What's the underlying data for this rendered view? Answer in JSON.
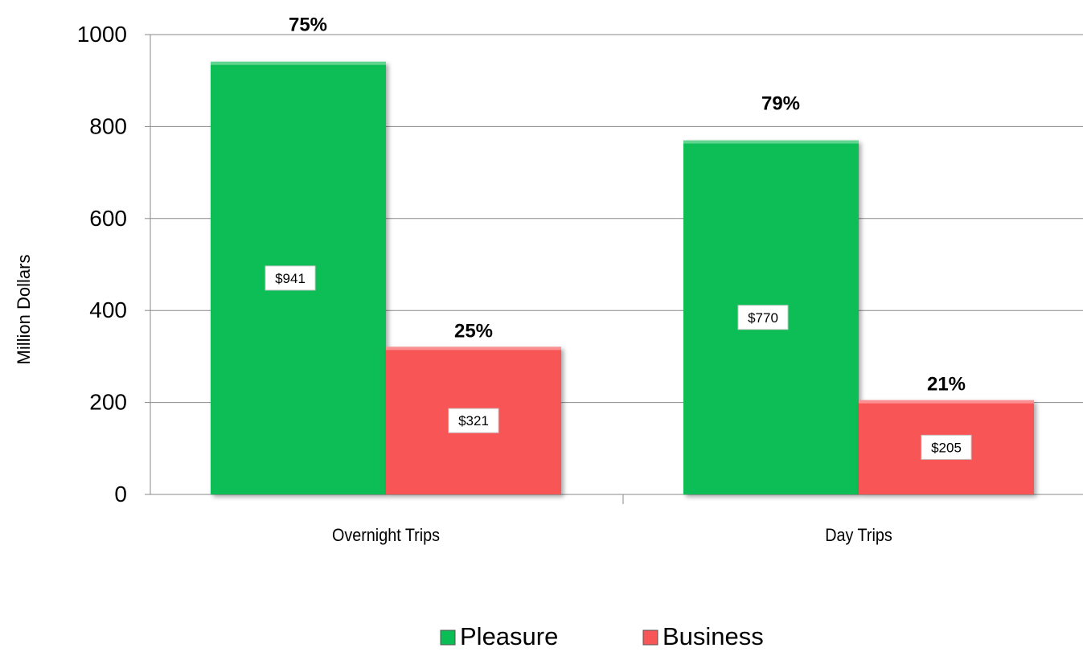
{
  "chart_data": {
    "type": "bar",
    "categories": [
      "Overnight Trips",
      "Day Trips"
    ],
    "series": [
      {
        "name": "Pleasure",
        "values": [
          941,
          770
        ],
        "value_labels": [
          "$941",
          "$770"
        ],
        "share_labels": [
          "75%",
          "79%"
        ],
        "color": "#0bbd55"
      },
      {
        "name": "Business",
        "values": [
          321,
          205
        ],
        "value_labels": [
          "$321",
          "$205"
        ],
        "share_labels": [
          "25%",
          "21%"
        ],
        "color": "#f85557"
      }
    ],
    "ylabel": "Million Dollars",
    "xlabel": "",
    "ylim": [
      0,
      1000
    ],
    "yticks": [
      0,
      200,
      400,
      600,
      800,
      1000
    ],
    "grid": true,
    "legend_position": "bottom"
  }
}
